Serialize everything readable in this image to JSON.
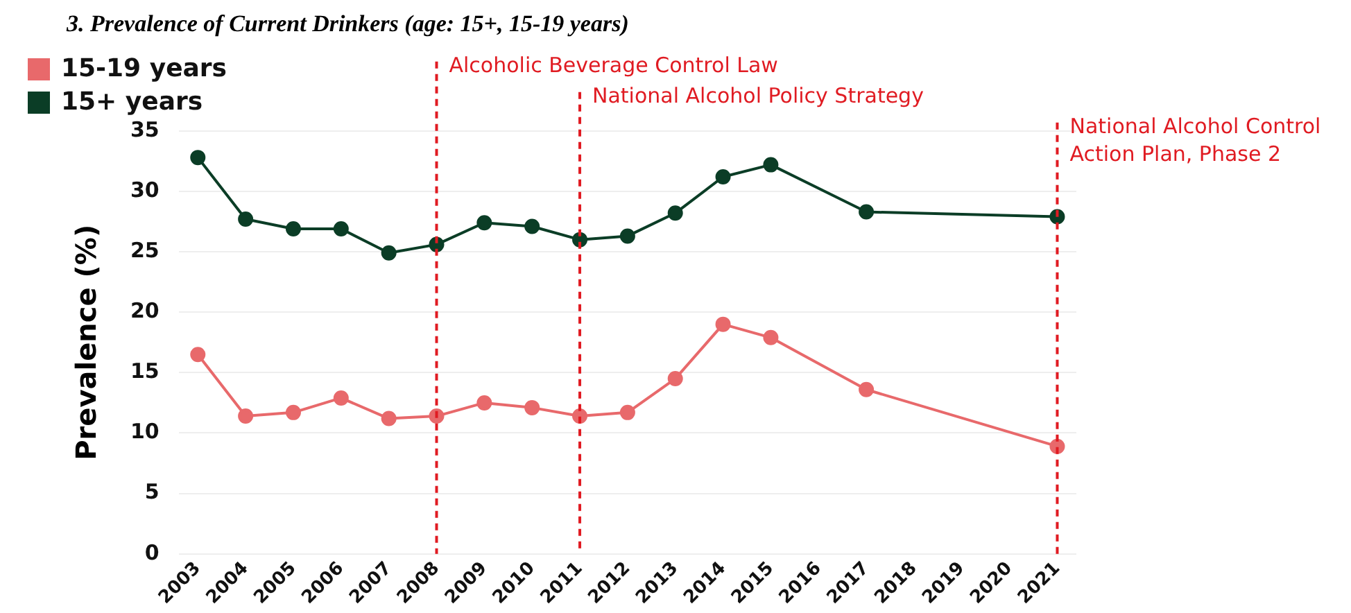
{
  "chart_data": {
    "type": "line",
    "title": "3. Prevalence of Current Drinkers (age: 15+, 15-19 years)",
    "ylabel": "Prevalence (%)",
    "x": [
      2003,
      2004,
      2005,
      2006,
      2007,
      2008,
      2009,
      2010,
      2011,
      2012,
      2013,
      2014,
      2015,
      2017,
      2021
    ],
    "xlim": [
      2002.6,
      2021.4
    ],
    "xticks": [
      2003,
      2004,
      2005,
      2006,
      2007,
      2008,
      2009,
      2010,
      2011,
      2012,
      2013,
      2014,
      2015,
      2016,
      2017,
      2018,
      2019,
      2020,
      2021
    ],
    "ylim": [
      0,
      35
    ],
    "yticks": [
      0,
      5,
      10,
      15,
      20,
      25,
      30,
      35
    ],
    "grid": "y",
    "legend": "top left",
    "marker": "circle",
    "line_style": "solid",
    "series": [
      {
        "name": "15-19 years",
        "color": "#e8696b",
        "values": [
          16.5,
          11.4,
          11.7,
          12.9,
          11.2,
          11.4,
          12.5,
          12.1,
          11.4,
          11.7,
          14.5,
          19.0,
          17.9,
          13.6,
          8.9
        ]
      },
      {
        "name": "15+ years",
        "color": "#0b3d26",
        "values": [
          32.8,
          27.7,
          26.9,
          26.9,
          24.9,
          25.6,
          27.4,
          27.1,
          26.0,
          26.3,
          28.2,
          31.2,
          32.2,
          28.3,
          27.9
        ]
      }
    ],
    "ref_lines": [
      {
        "axis": "x",
        "value": 2008,
        "label": "Alcoholic Beverage Control Law",
        "color": "#e01b22",
        "line_style": "dashed"
      },
      {
        "axis": "x",
        "value": 2011,
        "label": "National Alcohol Policy Strategy",
        "color": "#e01b22",
        "line_style": "dashed"
      },
      {
        "axis": "x",
        "value": 2021,
        "label": "National Alcohol Control Action Plan, Phase 2",
        "color": "#e01b22",
        "line_style": "dashed"
      }
    ]
  }
}
